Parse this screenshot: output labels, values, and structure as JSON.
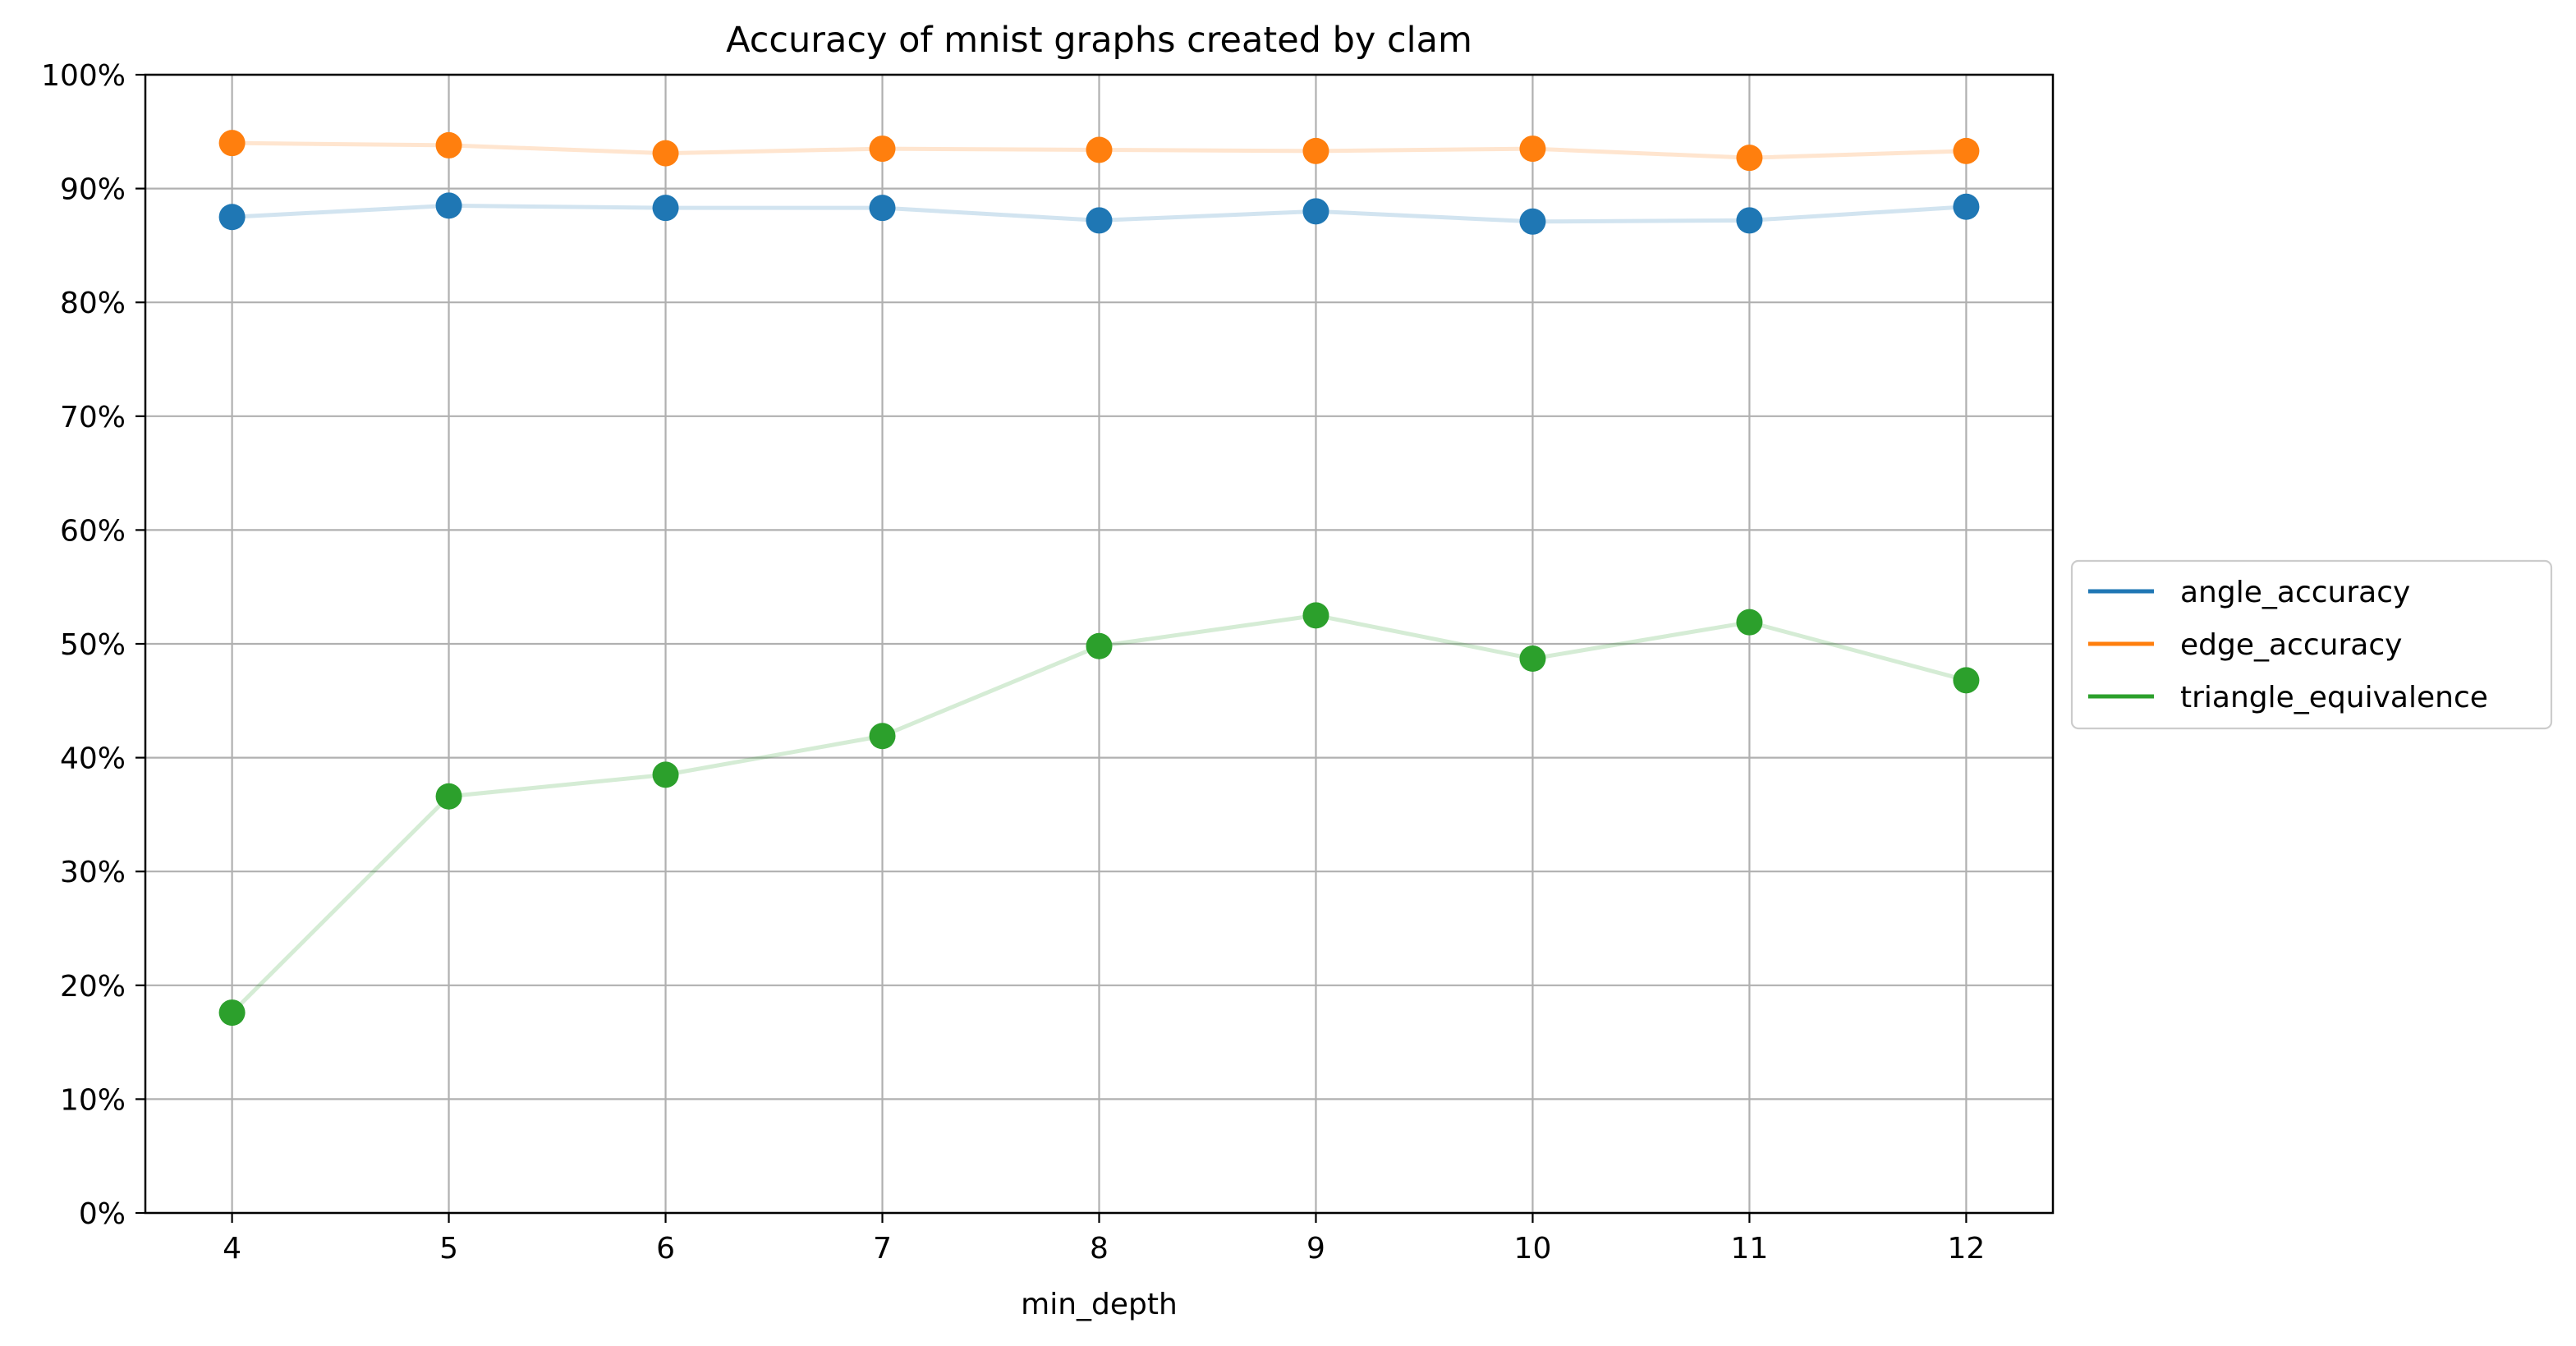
{
  "chart_data": {
    "type": "line",
    "title": "Accuracy of mnist graphs created by clam",
    "xlabel": "min_depth",
    "ylabel": "",
    "x": [
      4,
      5,
      6,
      7,
      8,
      9,
      10,
      11,
      12
    ],
    "xlim": [
      3.6,
      12.4
    ],
    "ylim": [
      0,
      1
    ],
    "yticks": [
      0,
      0.1,
      0.2,
      0.3,
      0.4,
      0.5,
      0.6,
      0.7,
      0.8,
      0.9,
      1.0
    ],
    "ytick_labels": [
      "0%",
      "10%",
      "20%",
      "30%",
      "40%",
      "50%",
      "60%",
      "70%",
      "80%",
      "90%",
      "100%"
    ],
    "grid": true,
    "legend_position": "right-outside",
    "series": [
      {
        "name": "angle_accuracy",
        "color": "#1f77b4",
        "values": [
          0.875,
          0.885,
          0.883,
          0.883,
          0.872,
          0.88,
          0.871,
          0.872,
          0.884
        ]
      },
      {
        "name": "edge_accuracy",
        "color": "#ff7f0e",
        "values": [
          0.94,
          0.938,
          0.931,
          0.935,
          0.934,
          0.933,
          0.935,
          0.927,
          0.933
        ]
      },
      {
        "name": "triangle_equivalence",
        "color": "#2ca02c",
        "values": [
          0.176,
          0.366,
          0.385,
          0.419,
          0.498,
          0.525,
          0.487,
          0.519,
          0.468
        ]
      }
    ]
  }
}
